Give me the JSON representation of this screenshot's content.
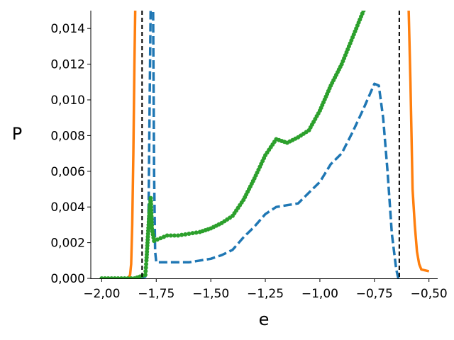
{
  "chart_data": {
    "type": "line",
    "xlabel": "e",
    "ylabel": "P",
    "xlim": [
      -2.05,
      -0.46
    ],
    "ylim": [
      0,
      0.015
    ],
    "grid": false,
    "legend": "none",
    "x_ticks": [
      -2.0,
      -1.75,
      -1.5,
      -1.25,
      -1.0,
      -0.75,
      -0.5
    ],
    "x_tick_labels": [
      "−2,00",
      "−1,75",
      "−1,50",
      "−1,25",
      "−1,00",
      "−0,75",
      "−0,50"
    ],
    "y_ticks": [
      0,
      0.002,
      0.004,
      0.006,
      0.008,
      0.01,
      0.012,
      0.014
    ],
    "y_tick_labels": [
      "0,000",
      "0,002",
      "0,004",
      "0,006",
      "0,008",
      "0,010",
      "0,012",
      "0,014"
    ],
    "vlines": [
      -1.815,
      -0.636
    ],
    "series": [
      {
        "style": "solid",
        "color": "#ff7f0e",
        "points": [
          [
            -2.0,
            0.0
          ],
          [
            -1.88,
            0.0
          ],
          [
            -1.87,
            0.0002
          ],
          [
            -1.865,
            0.0008
          ],
          [
            -1.86,
            0.003
          ],
          [
            -1.855,
            0.007
          ],
          [
            -1.85,
            0.012
          ],
          [
            -1.845,
            0.016
          ],
          [
            -0.595,
            0.016
          ],
          [
            -0.585,
            0.011
          ],
          [
            -0.575,
            0.005
          ],
          [
            -0.565,
            0.003
          ],
          [
            -0.555,
            0.0015
          ],
          [
            -0.545,
            0.0008
          ],
          [
            -0.535,
            0.0005
          ],
          [
            -0.5,
            0.0004
          ]
        ]
      },
      {
        "style": "dashed",
        "color": "#1f77b4",
        "points": [
          [
            -2.0,
            0.0
          ],
          [
            -1.83,
            0.0
          ],
          [
            -1.8,
            0.0001
          ],
          [
            -1.79,
            0.0015
          ],
          [
            -1.785,
            0.004
          ],
          [
            -1.78,
            0.01
          ],
          [
            -1.775,
            0.016
          ],
          [
            -1.765,
            0.016
          ],
          [
            -1.76,
            0.006
          ],
          [
            -1.755,
            0.0015
          ],
          [
            -1.75,
            0.0009
          ],
          [
            -1.7,
            0.0009
          ],
          [
            -1.6,
            0.0009
          ],
          [
            -1.55,
            0.001
          ],
          [
            -1.5,
            0.0011
          ],
          [
            -1.45,
            0.0013
          ],
          [
            -1.4,
            0.0016
          ],
          [
            -1.35,
            0.0023
          ],
          [
            -1.3,
            0.0029
          ],
          [
            -1.25,
            0.0036
          ],
          [
            -1.2,
            0.004
          ],
          [
            -1.15,
            0.0041
          ],
          [
            -1.1,
            0.0042
          ],
          [
            -1.05,
            0.0048
          ],
          [
            -1.0,
            0.0054
          ],
          [
            -0.95,
            0.0064
          ],
          [
            -0.9,
            0.007
          ],
          [
            -0.85,
            0.0082
          ],
          [
            -0.8,
            0.0095
          ],
          [
            -0.75,
            0.0109
          ],
          [
            -0.73,
            0.0108
          ],
          [
            -0.71,
            0.009
          ],
          [
            -0.69,
            0.006
          ],
          [
            -0.67,
            0.0025
          ],
          [
            -0.65,
            0.0005
          ],
          [
            -0.64,
            0.0
          ]
        ]
      },
      {
        "style": "dots",
        "color": "#2ca02c",
        "points": [
          [
            -2.0,
            0.0
          ],
          [
            -1.85,
            0.0
          ],
          [
            -1.8,
            0.0002
          ],
          [
            -1.795,
            0.001
          ],
          [
            -1.79,
            0.002
          ],
          [
            -1.785,
            0.003
          ],
          [
            -1.78,
            0.004
          ],
          [
            -1.775,
            0.0045
          ],
          [
            -1.77,
            0.0028
          ],
          [
            -1.76,
            0.0021
          ],
          [
            -1.7,
            0.0024
          ],
          [
            -1.65,
            0.0024
          ],
          [
            -1.6,
            0.0025
          ],
          [
            -1.55,
            0.0026
          ],
          [
            -1.5,
            0.0028
          ],
          [
            -1.45,
            0.0031
          ],
          [
            -1.4,
            0.0035
          ],
          [
            -1.35,
            0.0044
          ],
          [
            -1.3,
            0.0056
          ],
          [
            -1.25,
            0.0069
          ],
          [
            -1.2,
            0.0078
          ],
          [
            -1.15,
            0.0076
          ],
          [
            -1.1,
            0.0079
          ],
          [
            -1.05,
            0.0083
          ],
          [
            -1.0,
            0.0094
          ],
          [
            -0.95,
            0.0108
          ],
          [
            -0.9,
            0.012
          ],
          [
            -0.85,
            0.0135
          ],
          [
            -0.8,
            0.015
          ]
        ]
      }
    ]
  }
}
